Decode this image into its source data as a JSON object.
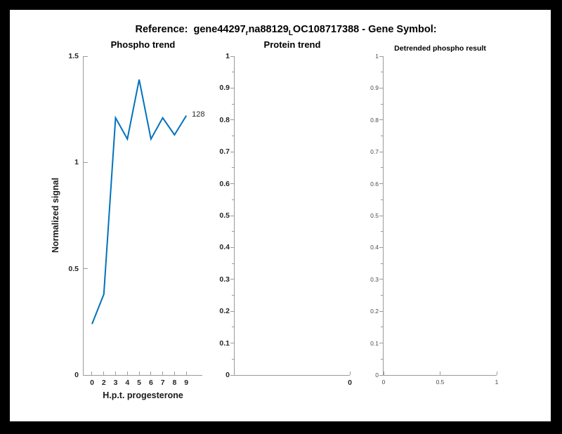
{
  "header": {
    "title_prefix": "Reference:  gene44297",
    "title_sub1": "r",
    "title_mid": "na88129",
    "title_sub2": "L",
    "title_suffix": "OC108717388 - Gene Symbol:"
  },
  "chart_data": [
    {
      "type": "line",
      "title": "Phospho trend",
      "xlabel": "H.p.t. progesterone",
      "ylabel": "Normalized signal",
      "ylim": [
        0,
        1.5
      ],
      "y_tick_labels": [
        "0",
        "0.5",
        "1",
        "1.5"
      ],
      "x_tick_labels": [
        "0",
        "2",
        "3",
        "4",
        "5",
        "6",
        "7",
        "8",
        "9"
      ],
      "values": [
        0.24,
        0.38,
        1.21,
        1.11,
        1.39,
        1.11,
        1.21,
        1.13,
        1.22
      ],
      "end_label": "128",
      "line_color": "#0072BD",
      "minor_y": false,
      "tick_out": false
    },
    {
      "type": "line",
      "title": "Protein trend",
      "xlabel": "",
      "ylabel": "",
      "ylim": [
        0,
        1
      ],
      "y_tick_labels": [
        "0",
        "0.1",
        "0.2",
        "0.3",
        "0.4",
        "0.5",
        "0.6",
        "0.7",
        "0.8",
        "0.9",
        "1"
      ],
      "x_tick_labels": [
        "0"
      ],
      "x_tick_pos": [
        1
      ],
      "values": [],
      "minor_y": true,
      "tick_out": true
    },
    {
      "type": "line",
      "title": "Detrended phospho result",
      "xlabel": "",
      "ylabel": "",
      "ylim": [
        0,
        1
      ],
      "y_tick_labels": [
        "0",
        "0.1",
        "0.2",
        "0.3",
        "0.4",
        "0.5",
        "0.6",
        "0.7",
        "0.8",
        "0.9",
        "1"
      ],
      "x_tick_labels": [
        "0",
        "0.5",
        "1"
      ],
      "x_tick_pos": [
        0,
        0.5,
        1
      ],
      "values": [],
      "minor_y": true,
      "tick_out": true
    }
  ]
}
